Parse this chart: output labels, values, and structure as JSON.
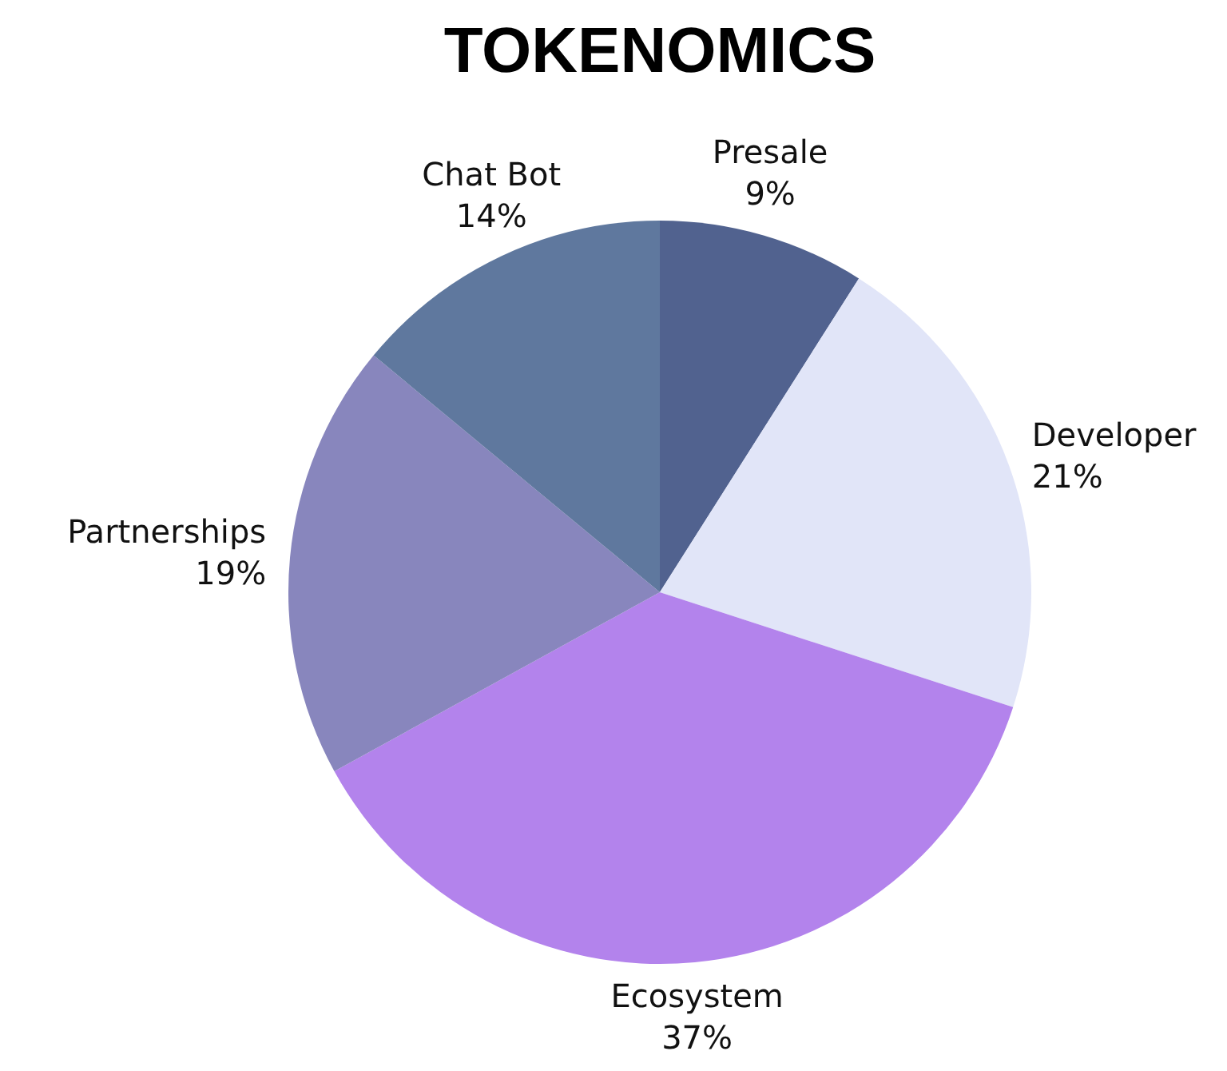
{
  "chart_data": {
    "type": "pie",
    "title": "TOKENOMICS",
    "categories": [
      "Presale",
      "Developer",
      "Ecosystem",
      "Partnerships",
      "Chat Bot"
    ],
    "values": [
      9,
      21,
      37,
      19,
      14
    ],
    "value_labels": [
      "9%",
      "21%",
      "37%",
      "19%",
      "14%"
    ],
    "colors": [
      "#51628f",
      "#e1e5f8",
      "#b383ec",
      "#8886bd",
      "#5f789e"
    ],
    "legend": false
  }
}
